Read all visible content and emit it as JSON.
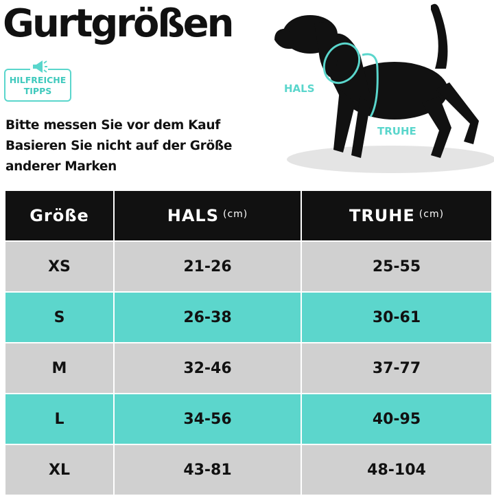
{
  "header": {
    "title": "Gurtgrößen",
    "badge": [
      "HILFREICHE",
      "TIPPS"
    ],
    "lines": [
      "Bitte messen Sie vor dem Kauf",
      "Basieren Sie nicht auf der Größe",
      "anderer Marken"
    ]
  },
  "illustration": {
    "neck_label": "HALS",
    "chest_label": "TRUHE"
  },
  "table": {
    "columns": [
      {
        "label": "Größe"
      },
      {
        "label": "HALS",
        "unit": "(cm)"
      },
      {
        "label": "TRUHE",
        "unit": "(cm)"
      }
    ],
    "rows": [
      [
        "XS",
        "21-26",
        "25-55"
      ],
      [
        "S",
        "26-38",
        "30-61"
      ],
      [
        "M",
        "32-46",
        "37-77"
      ],
      [
        "L",
        "34-56",
        "40-95"
      ],
      [
        "XL",
        "43-81",
        "48-104"
      ]
    ]
  }
}
